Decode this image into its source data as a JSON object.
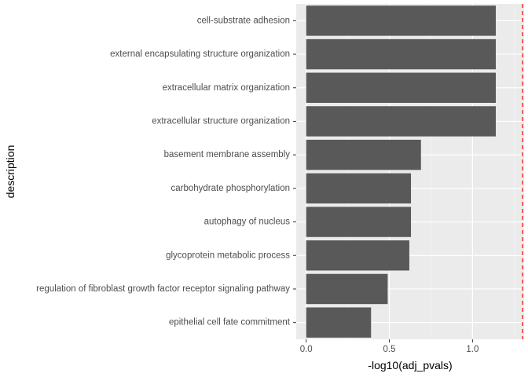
{
  "chart_data": {
    "type": "bar",
    "orientation": "horizontal",
    "xlabel": "-log10(adj_pvals)",
    "ylabel": "description",
    "categories": [
      "cell-substrate adhesion",
      "external encapsulating structure organization",
      "extracellular matrix organization",
      "extracellular structure organization",
      "basement membrane assembly",
      "carbohydrate phosphorylation",
      "autophagy of nucleus",
      "glycoprotein metabolic process",
      "regulation of fibroblast growth factor receptor signaling pathway",
      "epithelial cell fate commitment"
    ],
    "values": [
      1.14,
      1.14,
      1.14,
      1.14,
      0.69,
      0.63,
      0.63,
      0.62,
      0.49,
      0.39
    ],
    "xlim": [
      -0.06,
      1.31
    ],
    "xticks": [
      0.0,
      0.5,
      1.0
    ],
    "xtick_labels": [
      "0.0",
      "0.5",
      "1.0"
    ],
    "reference_line": {
      "value": 1.30103,
      "style": "dashed",
      "color": "#ff0000"
    },
    "bar_color": "#595959",
    "panel_background": "#ebebeb",
    "grid": true,
    "legend": "none"
  }
}
